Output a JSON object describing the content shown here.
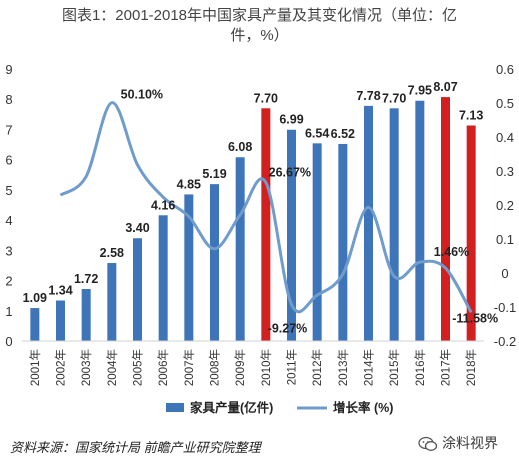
{
  "title": {
    "line1": "图表1：2001-2018年中国家具产量及其变化情况（单位：亿",
    "line2": "件，%）"
  },
  "source": "资料来源：国家统计局  前瞻产业研究院整理",
  "watermark": {
    "label": "涂料视界",
    "icon": "wechat-icon"
  },
  "colors": {
    "bar": "#3e75b8",
    "bar_highlight": "#d21f1f",
    "line": "#6f9ccc",
    "axis_text": "#333333"
  },
  "chart_data": {
    "type": "bar",
    "categories": [
      "2001年",
      "2002年",
      "2003年",
      "2004年",
      "2005年",
      "2006年",
      "2007年",
      "2008年",
      "2009年",
      "2010年",
      "2011年",
      "2012年",
      "2013年",
      "2014年",
      "2015年",
      "2016年",
      "2017年",
      "2018年"
    ],
    "ylim": [
      0,
      9
    ],
    "y2lim": [
      -0.2,
      0.6
    ],
    "y_ticks": [
      "0",
      "1",
      "2",
      "3",
      "4",
      "5",
      "6",
      "7",
      "8",
      "9"
    ],
    "y2_ticks": [
      "-0.2",
      "-0.1",
      "0",
      "0.1",
      "0.2",
      "0.3",
      "0.4",
      "0.5",
      "0.6"
    ],
    "grid": false,
    "legend_position": "bottom",
    "series": [
      {
        "name": "家具产量(亿件)",
        "type": "bar",
        "axis": "left",
        "values": [
          1.09,
          1.34,
          1.72,
          2.58,
          3.4,
          4.16,
          4.85,
          5.19,
          6.08,
          7.7,
          6.99,
          6.54,
          6.52,
          7.78,
          7.7,
          7.95,
          8.07,
          7.13
        ],
        "labels": [
          "1.09",
          "1.34",
          "1.72",
          "2.58",
          "3.40",
          "4.16",
          "4.85",
          "5.19",
          "6.08",
          "7.70",
          "6.99",
          "6.54",
          "6.52",
          "7.78",
          "7.70",
          "7.95",
          "8.07",
          "7.13"
        ],
        "highlight": [
          false,
          false,
          false,
          false,
          false,
          false,
          false,
          false,
          false,
          true,
          false,
          false,
          false,
          false,
          false,
          false,
          true,
          true
        ]
      },
      {
        "name": "增长率 (%)",
        "type": "line",
        "axis": "right",
        "values": [
          null,
          0.229,
          0.284,
          0.501,
          0.318,
          0.223,
          0.166,
          0.071,
          0.171,
          0.2667,
          -0.0927,
          -0.065,
          -0.003,
          0.193,
          -0.01,
          0.032,
          0.0146,
          -0.1158
        ],
        "labels": [
          "",
          "",
          "",
          "50.10%",
          "",
          "",
          "",
          "",
          "",
          "26.67%",
          "-9.27%",
          "",
          "",
          "",
          "",
          "",
          "1.46%",
          "-11.58%"
        ]
      }
    ]
  }
}
